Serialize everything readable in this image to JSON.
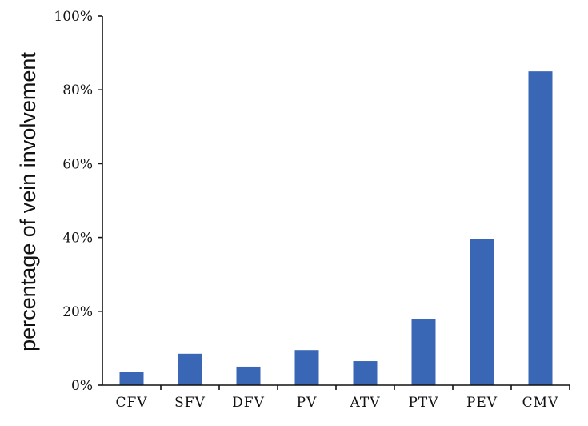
{
  "chart_data": {
    "type": "bar",
    "title": "",
    "xlabel": "",
    "ylabel": "percentage of vein involvement",
    "categories": [
      "CFV",
      "SFV",
      "DFV",
      "PV",
      "ATV",
      "PTV",
      "PEV",
      "CMV"
    ],
    "values": [
      3.5,
      8.5,
      5,
      9.5,
      6.5,
      18,
      39.5,
      85
    ],
    "ylim": [
      0,
      100
    ],
    "yticks": [
      "0%",
      "20%",
      "40%",
      "60%",
      "80%",
      "100%"
    ],
    "grid": false,
    "legend": "none",
    "bar_color": "#3a66b6"
  }
}
